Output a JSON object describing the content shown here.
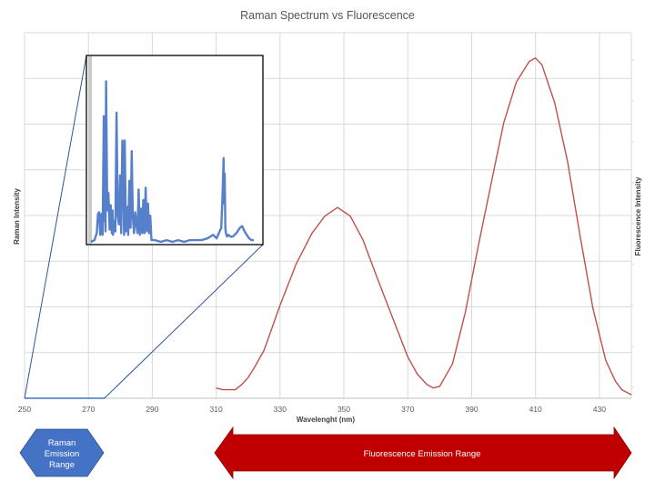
{
  "chart_data": {
    "type": "line",
    "title": "Raman Spectrum vs Fluorescence",
    "xlabel": "Wavelenght (nm)",
    "ylabel_left": "Raman Intensity",
    "ylabel_right": "Fluorescence Intensity",
    "xlim": [
      250,
      440
    ],
    "x_ticks": [
      "250",
      "270",
      "290",
      "310",
      "330",
      "350",
      "370",
      "390",
      "410",
      "430"
    ],
    "grid": true,
    "series": [
      {
        "color": "#4472C4",
        "x": [
          250,
          253,
          256,
          260,
          265,
          270,
          275
        ],
        "y": [
          0,
          0,
          0,
          0,
          0,
          0,
          0
        ]
      },
      {
        "color": "#C0504D",
        "x": [
          310,
          312,
          314,
          316,
          318,
          320,
          322,
          325,
          330,
          335,
          340,
          344,
          348,
          352,
          356,
          360,
          365,
          370,
          373,
          376,
          378,
          380,
          384,
          388,
          392,
          396,
          400,
          404,
          408,
          410,
          412,
          416,
          420,
          424,
          428,
          432,
          435,
          437,
          439,
          440
        ],
        "y": [
          0.03,
          0.025,
          0.025,
          0.025,
          0.04,
          0.06,
          0.09,
          0.14,
          0.27,
          0.39,
          0.48,
          0.53,
          0.555,
          0.53,
          0.46,
          0.36,
          0.24,
          0.12,
          0.07,
          0.04,
          0.03,
          0.035,
          0.1,
          0.25,
          0.44,
          0.62,
          0.8,
          0.92,
          0.98,
          0.99,
          0.97,
          0.86,
          0.69,
          0.47,
          0.26,
          0.11,
          0.05,
          0.025,
          0.015,
          0.01
        ]
      }
    ],
    "inset": {
      "color": "#4472C4",
      "x": [
        0,
        3,
        5,
        6,
        7,
        8,
        9,
        10,
        11,
        11.5,
        12,
        12.5,
        13,
        14,
        15,
        16,
        17,
        18,
        18.5,
        19,
        20,
        21,
        22,
        23,
        24,
        25,
        26,
        27,
        28,
        28.5,
        29,
        30,
        31,
        32,
        33,
        34,
        35,
        36,
        37,
        38,
        39,
        40,
        41,
        42,
        43,
        44,
        45,
        46,
        47,
        48,
        49,
        50,
        51,
        52,
        55,
        60,
        65,
        70,
        75,
        80,
        85,
        90,
        95,
        100,
        105,
        108,
        110,
        112,
        113,
        114,
        114.5,
        115,
        115.5,
        116,
        117,
        118,
        120,
        122,
        125,
        128,
        130,
        132,
        134,
        136,
        138,
        140
      ],
      "y": [
        0,
        0.01,
        0.05,
        0.16,
        0.17,
        0.04,
        0.16,
        0.04,
        0.72,
        0.12,
        0.3,
        0.06,
        0.92,
        0.18,
        0.28,
        0.07,
        0.21,
        0.05,
        0.18,
        0.04,
        0.12,
        0.06,
        0.74,
        0.15,
        0.1,
        0.38,
        0.05,
        0.58,
        0.25,
        0.04,
        0.58,
        0.06,
        0.2,
        0.04,
        0.35,
        0.08,
        0.52,
        0.14,
        0.05,
        0.17,
        0.1,
        0.05,
        0.3,
        0.04,
        0.19,
        0.05,
        0.24,
        0.05,
        0.31,
        0.06,
        0.22,
        0.05,
        0.15,
        0.01,
        0.01,
        0.0,
        0.01,
        0.0,
        0.01,
        0.0,
        0.01,
        0.01,
        0.01,
        0.02,
        0.04,
        0.02,
        0.05,
        0.08,
        0.25,
        0.48,
        0.22,
        0.39,
        0.08,
        0.05,
        0.03,
        0.04,
        0.03,
        0.03,
        0.05,
        0.08,
        0.09,
        0.06,
        0.04,
        0.02,
        0.01,
        0.01
      ]
    }
  },
  "annotations": {
    "raman_label": "Raman Emission Range",
    "raman_lines": [
      "Raman",
      "Emission",
      "Range"
    ],
    "fluorescence_label": "Fluorescence Emission Range",
    "raman_color": "#4472C4",
    "fluorescence_color": "#C00000"
  }
}
